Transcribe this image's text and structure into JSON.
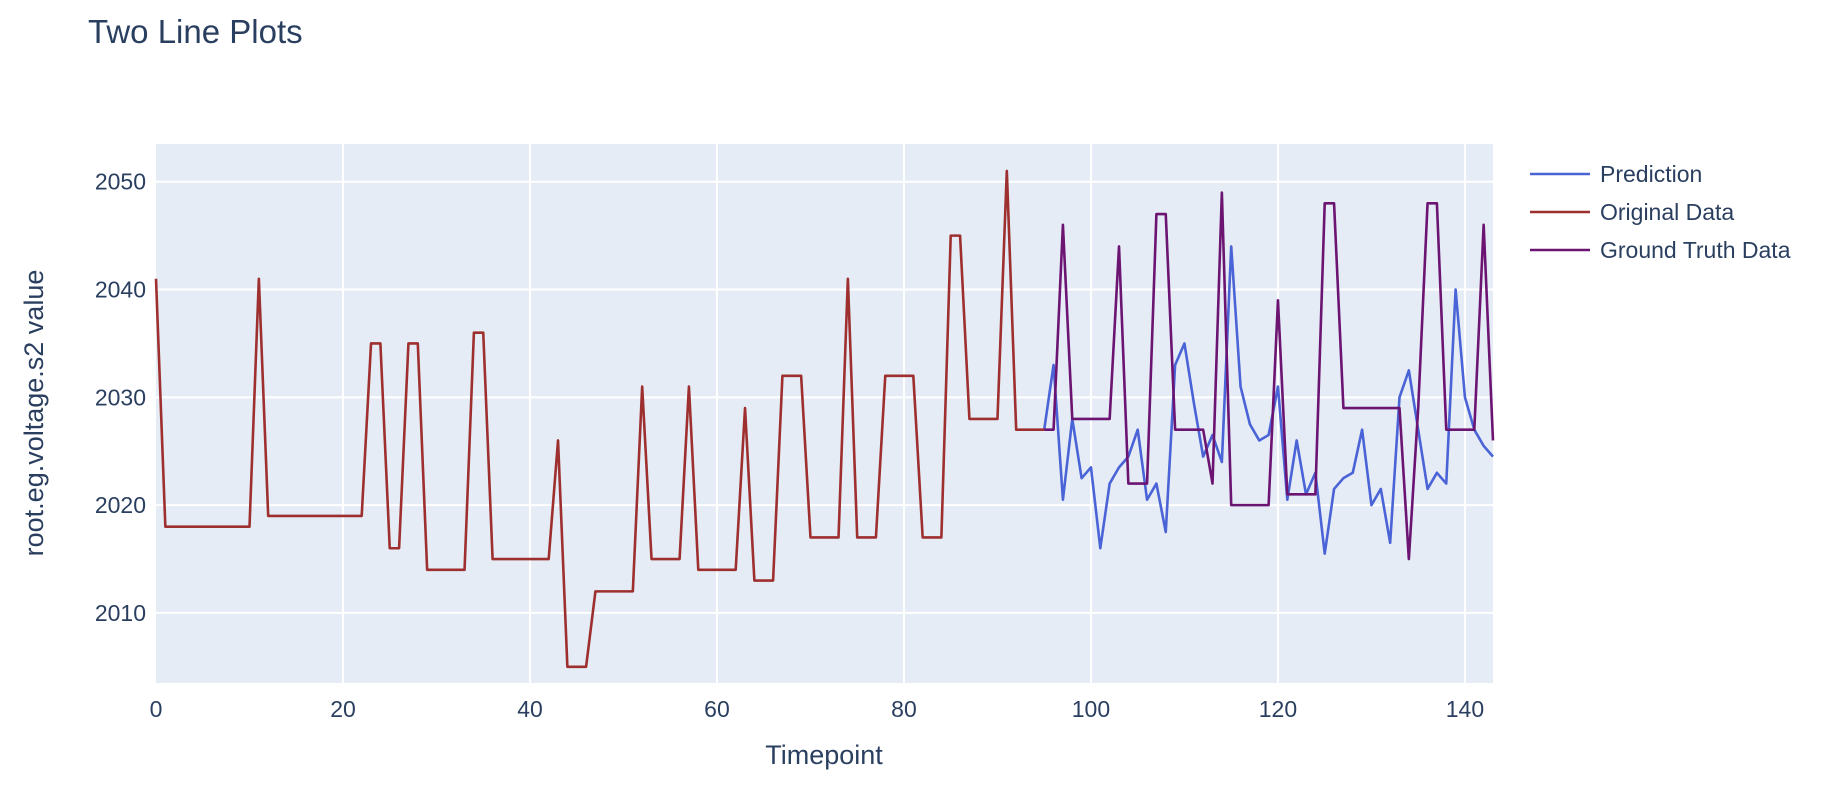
{
  "chart_data": {
    "type": "line",
    "title": "Two Line Plots",
    "xlabel": "Timepoint",
    "ylabel": "root.eg.voltage.s2 value",
    "xlim": [
      0,
      143
    ],
    "ylim": [
      2003.5,
      2053.5
    ],
    "xticks": [
      0,
      20,
      40,
      60,
      80,
      100,
      120,
      140
    ],
    "yticks": [
      2010,
      2020,
      2030,
      2040,
      2050
    ],
    "grid": true,
    "legend": "top-right",
    "series": [
      {
        "name": "Prediction",
        "color": "#4a63d6",
        "x": [
          95,
          96,
          97,
          98,
          99,
          100,
          101,
          102,
          103,
          104,
          105,
          106,
          107,
          108,
          109,
          110,
          111,
          112,
          113,
          114,
          115,
          116,
          117,
          118,
          119,
          120,
          121,
          122,
          123,
          124,
          125,
          126,
          127,
          128,
          129,
          130,
          131,
          132,
          133,
          134,
          135,
          136,
          137,
          138,
          139,
          140,
          141,
          142,
          143
        ],
        "y": [
          2027,
          2033,
          2020.5,
          2028,
          2022.5,
          2023.5,
          2016,
          2022,
          2023.5,
          2024.5,
          2027,
          2020.5,
          2022,
          2017.5,
          2033,
          2035,
          2029.5,
          2024.5,
          2026.5,
          2024,
          2044,
          2031,
          2027.5,
          2026,
          2026.5,
          2031,
          2020.5,
          2026,
          2021,
          2023,
          2015.5,
          2021.5,
          2022.5,
          2023,
          2027,
          2020,
          2021.5,
          2016.5,
          2030,
          2032.5,
          2027,
          2021.5,
          2023,
          2022,
          2040,
          2030,
          2027,
          2025.5,
          2024.5
        ]
      },
      {
        "name": "Original Data",
        "color": "#9e2f2f",
        "x": [
          0,
          1,
          2,
          3,
          4,
          5,
          6,
          7,
          8,
          9,
          10,
          11,
          12,
          13,
          14,
          15,
          16,
          17,
          18,
          19,
          20,
          21,
          22,
          23,
          24,
          25,
          26,
          27,
          28,
          29,
          30,
          31,
          32,
          33,
          34,
          35,
          36,
          37,
          38,
          39,
          40,
          41,
          42,
          43,
          44,
          45,
          46,
          47,
          48,
          49,
          50,
          51,
          52,
          53,
          54,
          55,
          56,
          57,
          58,
          59,
          60,
          61,
          62,
          63,
          64,
          65,
          66,
          67,
          68,
          69,
          70,
          71,
          72,
          73,
          74,
          75,
          76,
          77,
          78,
          79,
          80,
          81,
          82,
          83,
          84,
          85,
          86,
          87,
          88,
          89,
          90,
          91,
          92,
          93,
          94,
          95
        ],
        "y": [
          2041,
          2018,
          2018,
          2018,
          2018,
          2018,
          2018,
          2018,
          2018,
          2018,
          2018,
          2041,
          2019,
          2019,
          2019,
          2019,
          2019,
          2019,
          2019,
          2019,
          2019,
          2019,
          2019,
          2035,
          2035,
          2016,
          2016,
          2035,
          2035,
          2014,
          2014,
          2014,
          2014,
          2014,
          2036,
          2036,
          2015,
          2015,
          2015,
          2015,
          2015,
          2015,
          2015,
          2026,
          2005,
          2005,
          2005,
          2012,
          2012,
          2012,
          2012,
          2012,
          2031,
          2015,
          2015,
          2015,
          2015,
          2031,
          2014,
          2014,
          2014,
          2014,
          2014,
          2029,
          2013,
          2013,
          2013,
          2032,
          2032,
          2032,
          2017,
          2017,
          2017,
          2017,
          2041,
          2017,
          2017,
          2017,
          2032,
          2032,
          2032,
          2032,
          2017,
          2017,
          2017,
          2045,
          2045,
          2028,
          2028,
          2028,
          2028,
          2051,
          2027,
          2027,
          2027,
          2027
        ]
      },
      {
        "name": "Ground Truth Data",
        "color": "#6c1472",
        "x": [
          95,
          96,
          97,
          98,
          99,
          100,
          101,
          102,
          103,
          104,
          105,
          106,
          107,
          108,
          109,
          110,
          111,
          112,
          113,
          114,
          115,
          116,
          117,
          118,
          119,
          120,
          121,
          122,
          123,
          124,
          125,
          126,
          127,
          128,
          129,
          130,
          131,
          132,
          133,
          134,
          135,
          136,
          137,
          138,
          139,
          140,
          141,
          142,
          143
        ],
        "y": [
          2027,
          2027,
          2046,
          2028,
          2028,
          2028,
          2028,
          2028,
          2044,
          2022,
          2022,
          2022,
          2047,
          2047,
          2027,
          2027,
          2027,
          2027,
          2022,
          2049,
          2020,
          2020,
          2020,
          2020,
          2020,
          2039,
          2021,
          2021,
          2021,
          2021,
          2048,
          2048,
          2029,
          2029,
          2029,
          2029,
          2029,
          2029,
          2029,
          2015,
          2029,
          2048,
          2048,
          2027,
          2027,
          2027,
          2027,
          2046,
          2026
        ]
      }
    ]
  }
}
